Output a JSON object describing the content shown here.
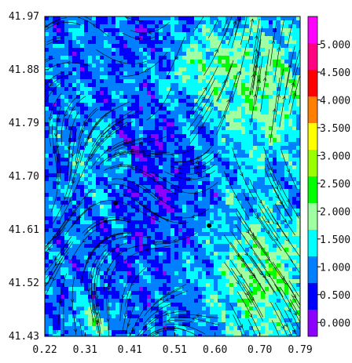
{
  "chart_data": {
    "type": "heatmap",
    "title": "",
    "xlabel": "",
    "ylabel": "",
    "xlim": [
      0.22,
      0.79
    ],
    "ylim": [
      41.43,
      41.97
    ],
    "x_ticks": [
      "0.22",
      "0.31",
      "0.41",
      "0.51",
      "0.60",
      "0.70",
      "0.79"
    ],
    "y_ticks": [
      "41.97",
      "41.88",
      "41.79",
      "41.70",
      "41.61",
      "41.52",
      "41.43"
    ],
    "grid": false,
    "overlay": "streamlines",
    "colorbar": {
      "ticks": [
        "0.000",
        "0.500",
        "1.000",
        "1.500",
        "2.000",
        "2.500",
        "3.000",
        "3.500",
        "4.000",
        "4.500",
        "5.000"
      ],
      "range": [
        -0.25,
        5.5
      ],
      "colors": [
        "#8b00ff",
        "#0000ff",
        "#0080ff",
        "#00ffff",
        "#a0ffa0",
        "#00ff00",
        "#9aff00",
        "#ffff00",
        "#ff8000",
        "#ff0000",
        "#ff0080",
        "#ff00ff"
      ]
    },
    "markers": [
      {
        "x": 0.378,
        "y": 41.655
      },
      {
        "x": 0.587,
        "y": 41.617
      }
    ]
  }
}
